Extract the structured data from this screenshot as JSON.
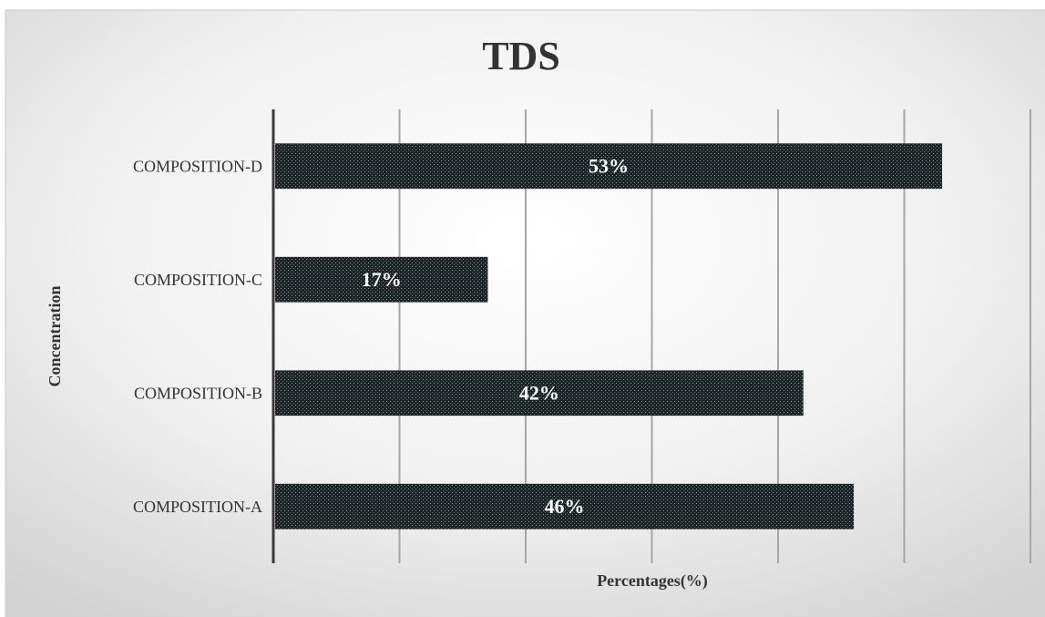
{
  "chart_data": {
    "type": "bar",
    "orientation": "horizontal",
    "title": "TDS",
    "xlabel": "Percentages(%)",
    "ylabel": "Concentration",
    "categories": [
      "COMPOSITION-A",
      "COMPOSITION-B",
      "COMPOSITION-C",
      "COMPOSITION-D"
    ],
    "values": [
      46,
      42,
      17,
      53
    ],
    "data_labels": [
      "46%",
      "42%",
      "17%",
      "53%"
    ],
    "xlim": [
      0,
      60
    ],
    "gridlines": "vertical",
    "legend": "none",
    "colors": {
      "bar": "#1e2426",
      "bar_dots": "#6fa3a6",
      "grid": "#a6a6a6",
      "axis": "#3a3a3a",
      "text": "#333333",
      "data_label": "#ffffff"
    }
  }
}
